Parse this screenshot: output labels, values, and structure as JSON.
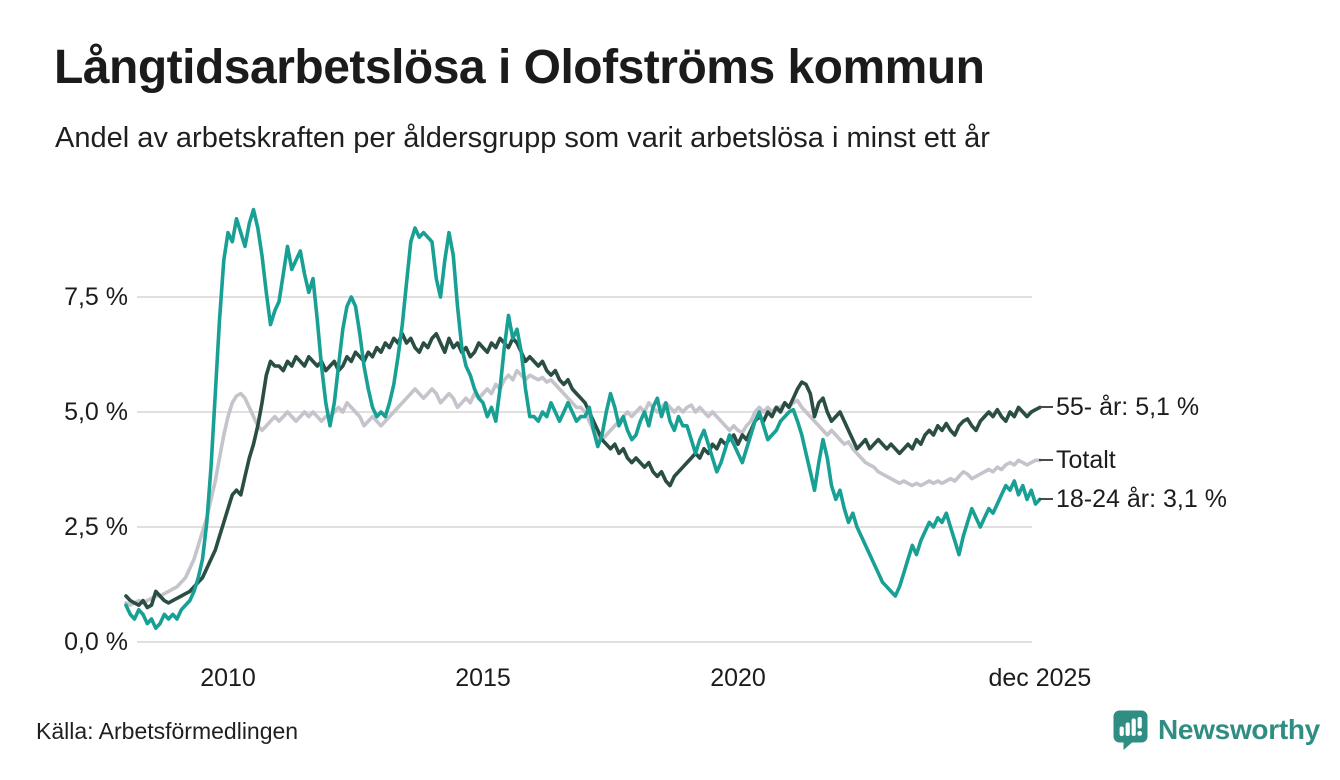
{
  "header": {
    "title": "Långtidsarbetslösa i Olofströms kommun",
    "subtitle": "Andel av arbetskraften per åldersgrupp som varit arbetslösa i minst ett år"
  },
  "footer": {
    "source": "Källa: Arbetsförmedlingen",
    "brand": "Newsworthy"
  },
  "colors": {
    "brand_teal": "#2f8d83",
    "grid": "#e0e0e0",
    "text": "#1c1c1c",
    "connector": "#4a4a4a"
  },
  "chart_data": {
    "type": "line",
    "title": "Långtidsarbetslösa i Olofströms kommun",
    "subtitle": "Andel av arbetskraften per åldersgrupp som varit arbetslösa i minst ett år",
    "source": "Källa: Arbetsförmedlingen",
    "x_unit": "month",
    "x_start": "2008-01",
    "x_end": "2025-12",
    "ylim": [
      0,
      9.7
    ],
    "grid": true,
    "legend_position": "right-end-labels",
    "yticks": [
      {
        "label": "0,0 %",
        "value": 0
      },
      {
        "label": "2,5 %",
        "value": 2.5
      },
      {
        "label": "5,0 %",
        "value": 5
      },
      {
        "label": "7,5 %",
        "value": 7.5
      }
    ],
    "xticks": [
      {
        "label": "2010",
        "t": 2010
      },
      {
        "label": "2015",
        "t": 2015
      },
      {
        "label": "2020",
        "t": 2020
      },
      {
        "label": "dec 2025",
        "t": 2025.92
      }
    ],
    "series": [
      {
        "name": "Totalt",
        "end_label": "Totalt",
        "end_value": null,
        "color": "#c5c3cb",
        "values": [
          0.85,
          0.8,
          0.85,
          0.9,
          0.85,
          0.9,
          0.95,
          1.0,
          1.0,
          1.05,
          1.1,
          1.15,
          1.2,
          1.3,
          1.4,
          1.6,
          1.8,
          2.1,
          2.4,
          2.7,
          3.1,
          3.5,
          4.0,
          4.5,
          4.9,
          5.2,
          5.35,
          5.4,
          5.3,
          5.1,
          4.9,
          4.7,
          4.6,
          4.7,
          4.8,
          4.9,
          4.8,
          4.9,
          5.0,
          4.9,
          4.8,
          4.9,
          5.0,
          4.9,
          5.0,
          4.9,
          4.8,
          4.9,
          4.9,
          5.0,
          5.1,
          5.0,
          5.2,
          5.1,
          5.0,
          4.9,
          4.7,
          4.8,
          4.9,
          4.8,
          4.7,
          4.8,
          4.9,
          5.0,
          5.1,
          5.2,
          5.3,
          5.4,
          5.5,
          5.4,
          5.3,
          5.4,
          5.5,
          5.4,
          5.2,
          5.3,
          5.4,
          5.3,
          5.1,
          5.2,
          5.3,
          5.2,
          5.4,
          5.3,
          5.4,
          5.5,
          5.4,
          5.6,
          5.5,
          5.7,
          5.8,
          5.7,
          5.9,
          5.8,
          5.7,
          5.8,
          5.75,
          5.7,
          5.75,
          5.65,
          5.7,
          5.6,
          5.5,
          5.4,
          5.3,
          5.2,
          5.1,
          5.1,
          5.0,
          4.8,
          4.6,
          4.45,
          4.4,
          4.5,
          4.6,
          4.7,
          4.8,
          4.9,
          5.0,
          4.9,
          5.0,
          5.1,
          5.0,
          5.2,
          5.1,
          5.0,
          5.1,
          5.2,
          5.1,
          5.0,
          5.1,
          5.0,
          5.1,
          5.15,
          5.0,
          5.1,
          5.0,
          4.9,
          5.0,
          4.9,
          4.8,
          4.7,
          4.6,
          4.7,
          4.6,
          4.55,
          4.7,
          4.8,
          5.0,
          5.1,
          5.0,
          5.1,
          5.0,
          5.1,
          5.1,
          5.2,
          5.1,
          5.2,
          5.25,
          5.1,
          5.0,
          4.9,
          4.8,
          4.7,
          4.6,
          4.5,
          4.6,
          4.5,
          4.4,
          4.3,
          4.35,
          4.2,
          4.1,
          4.0,
          3.9,
          3.85,
          3.8,
          3.7,
          3.65,
          3.6,
          3.55,
          3.5,
          3.45,
          3.5,
          3.45,
          3.4,
          3.45,
          3.4,
          3.45,
          3.5,
          3.45,
          3.5,
          3.45,
          3.5,
          3.55,
          3.5,
          3.6,
          3.7,
          3.65,
          3.55,
          3.6,
          3.65,
          3.7,
          3.75,
          3.7,
          3.8,
          3.75,
          3.85,
          3.9,
          3.85,
          3.95,
          3.9,
          3.85,
          3.9,
          3.95,
          3.95
        ]
      },
      {
        "name": "55- år",
        "end_label": "55- år: 5,1 %",
        "end_value": 5.1,
        "color": "#2a4d44",
        "values": [
          1.0,
          0.9,
          0.85,
          0.8,
          0.9,
          0.75,
          0.8,
          1.1,
          1.0,
          0.9,
          0.85,
          0.9,
          0.95,
          1.0,
          1.05,
          1.1,
          1.2,
          1.3,
          1.4,
          1.6,
          1.8,
          2.0,
          2.3,
          2.6,
          2.9,
          3.2,
          3.3,
          3.2,
          3.6,
          4.0,
          4.3,
          4.7,
          5.2,
          5.8,
          6.1,
          6.0,
          6.0,
          5.9,
          6.1,
          6.0,
          6.2,
          6.1,
          6.0,
          6.2,
          6.1,
          6.0,
          6.1,
          5.9,
          6.0,
          6.1,
          5.9,
          6.0,
          6.2,
          6.1,
          6.3,
          6.2,
          6.1,
          6.3,
          6.2,
          6.4,
          6.3,
          6.5,
          6.4,
          6.6,
          6.5,
          6.7,
          6.5,
          6.6,
          6.4,
          6.3,
          6.5,
          6.4,
          6.6,
          6.7,
          6.5,
          6.3,
          6.6,
          6.4,
          6.5,
          6.3,
          6.4,
          6.2,
          6.3,
          6.5,
          6.4,
          6.3,
          6.5,
          6.4,
          6.6,
          6.5,
          6.4,
          6.6,
          6.5,
          6.3,
          6.1,
          6.2,
          6.1,
          6.0,
          6.1,
          5.9,
          5.8,
          5.9,
          5.7,
          5.6,
          5.7,
          5.5,
          5.4,
          5.3,
          5.2,
          5.0,
          4.8,
          4.6,
          4.4,
          4.3,
          4.2,
          4.3,
          4.1,
          4.2,
          4.0,
          3.9,
          4.0,
          3.9,
          3.8,
          3.9,
          3.7,
          3.6,
          3.7,
          3.5,
          3.4,
          3.6,
          3.7,
          3.8,
          3.9,
          4.0,
          4.1,
          4.0,
          4.2,
          4.1,
          4.3,
          4.2,
          4.4,
          4.3,
          4.4,
          4.5,
          4.3,
          4.5,
          4.4,
          4.6,
          4.8,
          4.9,
          4.8,
          5.0,
          4.9,
          5.1,
          5.0,
          5.2,
          5.1,
          5.3,
          5.5,
          5.65,
          5.6,
          5.4,
          4.9,
          5.2,
          5.3,
          5.0,
          4.8,
          4.9,
          5.0,
          4.8,
          4.6,
          4.4,
          4.2,
          4.3,
          4.4,
          4.2,
          4.3,
          4.4,
          4.3,
          4.2,
          4.3,
          4.2,
          4.1,
          4.2,
          4.3,
          4.2,
          4.4,
          4.3,
          4.5,
          4.6,
          4.5,
          4.7,
          4.6,
          4.75,
          4.6,
          4.5,
          4.7,
          4.8,
          4.85,
          4.7,
          4.6,
          4.8,
          4.9,
          5.0,
          4.9,
          5.05,
          4.9,
          4.8,
          5.0,
          4.9,
          5.1,
          5.0,
          4.9,
          5.0,
          5.05,
          5.1
        ]
      },
      {
        "name": "18-24 år",
        "end_label": "18-24 år: 3,1 %",
        "end_value": 3.1,
        "color": "#18a095",
        "values": [
          0.8,
          0.6,
          0.5,
          0.7,
          0.6,
          0.4,
          0.5,
          0.3,
          0.4,
          0.6,
          0.5,
          0.6,
          0.5,
          0.7,
          0.8,
          0.9,
          1.1,
          1.4,
          1.8,
          2.6,
          3.8,
          5.4,
          7.0,
          8.3,
          8.9,
          8.7,
          9.2,
          8.9,
          8.6,
          9.1,
          9.4,
          9.0,
          8.4,
          7.6,
          6.9,
          7.2,
          7.4,
          8.0,
          8.6,
          8.1,
          8.3,
          8.5,
          8.0,
          7.6,
          7.9,
          7.0,
          6.0,
          5.2,
          4.7,
          5.2,
          6.0,
          6.8,
          7.3,
          7.5,
          7.3,
          6.7,
          6.0,
          5.5,
          5.1,
          4.9,
          5.0,
          4.9,
          5.2,
          5.6,
          6.2,
          6.9,
          7.8,
          8.7,
          9.0,
          8.8,
          8.9,
          8.8,
          8.7,
          7.9,
          7.5,
          8.3,
          8.9,
          8.4,
          7.3,
          6.4,
          6.0,
          5.8,
          5.5,
          5.3,
          5.2,
          4.9,
          5.1,
          4.8,
          5.5,
          6.4,
          7.1,
          6.6,
          6.8,
          6.3,
          5.5,
          4.9,
          4.9,
          4.8,
          5.0,
          4.9,
          5.2,
          5.0,
          4.8,
          5.0,
          5.2,
          5.0,
          4.8,
          4.9,
          4.9,
          5.1,
          4.6,
          4.25,
          4.5,
          5.0,
          5.4,
          5.1,
          4.7,
          4.9,
          4.6,
          4.4,
          4.5,
          4.8,
          5.0,
          4.7,
          5.1,
          5.3,
          4.9,
          5.2,
          4.8,
          4.6,
          4.9,
          4.7,
          4.7,
          4.4,
          4.1,
          4.4,
          4.6,
          4.3,
          4.0,
          3.7,
          3.9,
          4.2,
          4.5,
          4.3,
          4.1,
          3.9,
          4.2,
          4.5,
          4.8,
          5.0,
          4.7,
          4.4,
          4.5,
          4.6,
          4.8,
          4.9,
          5.0,
          5.05,
          4.8,
          4.5,
          4.1,
          3.7,
          3.3,
          3.9,
          4.4,
          4.0,
          3.4,
          3.1,
          3.3,
          2.9,
          2.6,
          2.8,
          2.5,
          2.3,
          2.1,
          1.9,
          1.7,
          1.5,
          1.3,
          1.2,
          1.1,
          1.0,
          1.2,
          1.5,
          1.8,
          2.1,
          1.9,
          2.2,
          2.4,
          2.6,
          2.5,
          2.7,
          2.6,
          2.8,
          2.5,
          2.2,
          1.9,
          2.3,
          2.6,
          2.9,
          2.7,
          2.5,
          2.7,
          2.9,
          2.8,
          3.0,
          3.2,
          3.4,
          3.3,
          3.5,
          3.2,
          3.4,
          3.1,
          3.3,
          3.0,
          3.1
        ]
      }
    ]
  }
}
